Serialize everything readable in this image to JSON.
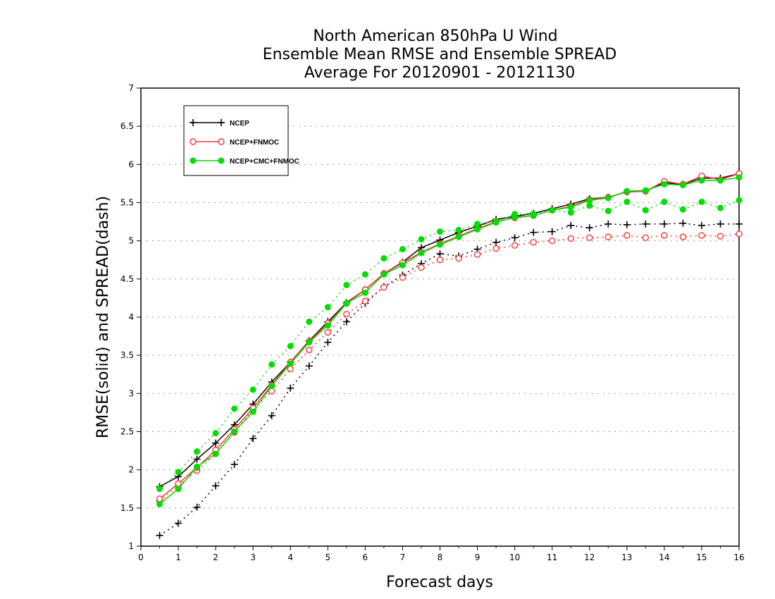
{
  "chart_data": {
    "type": "line",
    "title": [
      "North American 850hPa U Wind",
      "Ensemble Mean RMSE and Ensemble SPREAD",
      "Average For 20120901 - 20121130"
    ],
    "xlabel": "Forecast days",
    "ylabel": "RMSE(solid) and SPREAD(dash)",
    "xlim": [
      0,
      16
    ],
    "ylim": [
      1,
      7
    ],
    "xticks": [
      "0",
      "1",
      "2",
      "3",
      "4",
      "5",
      "6",
      "7",
      "8",
      "9",
      "10",
      "11",
      "12",
      "13",
      "14",
      "15",
      "16"
    ],
    "yticks": [
      "1",
      "1.5",
      "2",
      "2.5",
      "3",
      "3.5",
      "4",
      "4.5",
      "5",
      "5.5",
      "6",
      "6.5",
      "7"
    ],
    "grid": "horizontal dotted",
    "legend_position": "top-left",
    "x": [
      0.5,
      1,
      1.5,
      2,
      2.5,
      3,
      3.5,
      4,
      4.5,
      5,
      5.5,
      6,
      6.5,
      7,
      7.5,
      8,
      8.5,
      9,
      9.5,
      10,
      10.5,
      11,
      11.5,
      12,
      12.5,
      13,
      13.5,
      14,
      14.5,
      15,
      15.5,
      16
    ],
    "series": [
      {
        "name": "NCEP",
        "color": "#000000",
        "marker": "plus",
        "rmse": [
          1.78,
          1.91,
          2.14,
          2.35,
          2.59,
          2.86,
          3.15,
          3.41,
          3.69,
          3.94,
          4.19,
          4.36,
          4.57,
          4.72,
          4.91,
          5.01,
          5.11,
          5.19,
          5.28,
          5.32,
          5.36,
          5.42,
          5.48,
          5.55,
          5.57,
          5.64,
          5.65,
          5.76,
          5.74,
          5.82,
          5.82,
          5.88
        ],
        "spread": [
          1.14,
          1.3,
          1.51,
          1.79,
          2.07,
          2.41,
          2.71,
          3.07,
          3.36,
          3.67,
          3.94,
          4.18,
          4.4,
          4.55,
          4.7,
          4.83,
          4.8,
          4.89,
          4.98,
          5.04,
          5.11,
          5.12,
          5.2,
          5.17,
          5.22,
          5.21,
          5.22,
          5.22,
          5.23,
          5.2,
          5.22,
          5.22
        ]
      },
      {
        "name": "NCEP+FNMOC",
        "color": "#ff3333",
        "marker": "circle",
        "rmse": [
          1.62,
          1.82,
          2.03,
          2.26,
          2.53,
          2.81,
          3.11,
          3.41,
          3.68,
          3.92,
          4.18,
          4.36,
          4.57,
          4.71,
          4.85,
          4.96,
          5.06,
          5.16,
          5.25,
          5.3,
          5.33,
          5.4,
          5.45,
          5.54,
          5.57,
          5.64,
          5.65,
          5.78,
          5.74,
          5.85,
          5.8,
          5.88
        ],
        "spread": [
          1.59,
          1.79,
          1.99,
          2.21,
          2.49,
          2.79,
          3.03,
          3.32,
          3.57,
          3.8,
          4.04,
          4.21,
          4.39,
          4.52,
          4.65,
          4.75,
          4.77,
          4.82,
          4.9,
          4.94,
          4.98,
          5.0,
          5.03,
          5.04,
          5.05,
          5.07,
          5.04,
          5.07,
          5.05,
          5.07,
          5.06,
          5.09
        ]
      },
      {
        "name": "NCEP+CMC+FNMOC",
        "color": "#00dd00",
        "marker": "dot",
        "rmse": [
          1.55,
          1.75,
          2.04,
          2.21,
          2.5,
          2.76,
          3.1,
          3.39,
          3.67,
          3.89,
          4.18,
          4.32,
          4.56,
          4.68,
          4.84,
          4.95,
          5.05,
          5.15,
          5.24,
          5.31,
          5.33,
          5.4,
          5.44,
          5.53,
          5.56,
          5.65,
          5.66,
          5.74,
          5.73,
          5.79,
          5.79,
          5.83
        ],
        "spread": [
          1.75,
          1.97,
          2.24,
          2.48,
          2.8,
          3.05,
          3.38,
          3.62,
          3.94,
          4.13,
          4.42,
          4.56,
          4.77,
          4.89,
          5.02,
          5.12,
          5.14,
          5.22,
          5.25,
          5.35,
          5.35,
          5.4,
          5.37,
          5.46,
          5.39,
          5.51,
          5.4,
          5.51,
          5.41,
          5.51,
          5.43,
          5.53
        ]
      }
    ]
  }
}
